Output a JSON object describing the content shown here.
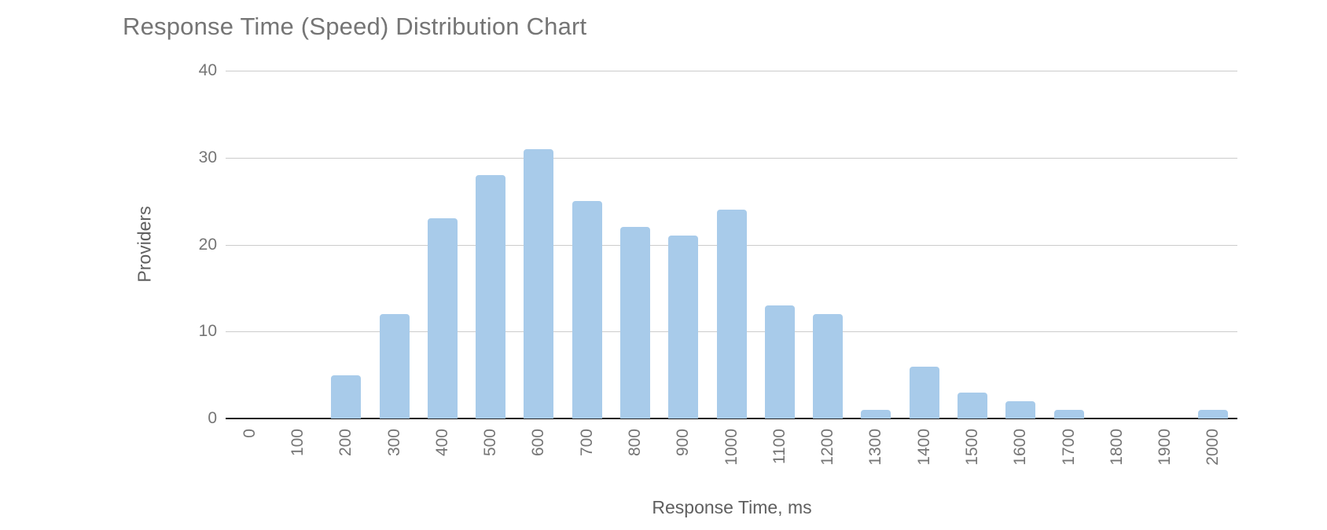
{
  "chart_data": {
    "type": "bar",
    "title": "Response Time (Speed) Distribution Chart",
    "xlabel": "Response Time, ms",
    "ylabel": "Providers",
    "categories": [
      "0",
      "100",
      "200",
      "300",
      "400",
      "500",
      "600",
      "700",
      "800",
      "900",
      "1000",
      "1100",
      "1200",
      "1300",
      "1400",
      "1500",
      "1600",
      "1700",
      "1800",
      "1900",
      "2000"
    ],
    "values": [
      0,
      0,
      5,
      12,
      23,
      28,
      31,
      25,
      22,
      21,
      24,
      13,
      12,
      1,
      6,
      3,
      2,
      1,
      0,
      0,
      1
    ],
    "ylim": [
      0,
      40
    ],
    "yticks": [
      "0",
      "10",
      "20",
      "30",
      "40"
    ],
    "grid": true,
    "legend": "none"
  },
  "colors": {
    "bar": "#a8cbea",
    "gridline": "#cccccc",
    "baseline": "#212121",
    "title_text": "#757575",
    "tick_text": "#757575",
    "axis_title_text": "#5f5f5f",
    "background": "#ffffff"
  }
}
